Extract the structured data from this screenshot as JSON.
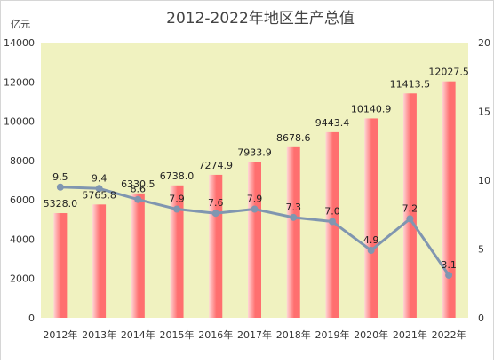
{
  "chart_data": {
    "type": "bar",
    "title": "2012-2022年地区生产总值",
    "ylabel": "亿元",
    "categories": [
      "2012年",
      "2013年",
      "2014年",
      "2015年",
      "2016年",
      "2017年",
      "2018年",
      "2019年",
      "2020年",
      "2021年",
      "2022年"
    ],
    "series": [
      {
        "type": "bar",
        "values": [
          5328.0,
          5765.8,
          6330.5,
          6738.0,
          7274.9,
          7933.9,
          8678.6,
          9443.4,
          10140.9,
          11413.5,
          12027.5
        ],
        "labels": [
          "5328.0",
          "5765.8",
          "6330.5",
          "6738.0",
          "7274.9",
          "7933.9",
          "8678.6",
          "9443.4",
          "10140.9",
          "11413.5",
          "12027.5"
        ]
      },
      {
        "type": "line",
        "axis": "right",
        "values": [
          9.5,
          9.4,
          8.6,
          7.9,
          7.6,
          7.9,
          7.3,
          7.0,
          4.9,
          7.2,
          3.1
        ],
        "labels": [
          "9.5",
          "9.4",
          "8.6",
          "7.9",
          "7.6",
          "7.9",
          "7.3",
          "7.0",
          "4.9",
          "7.2",
          "3.1"
        ]
      }
    ],
    "ylim": [
      0,
      14000
    ],
    "y_ticks": [
      "0",
      "2000",
      "4000",
      "6000",
      "8000",
      "10000",
      "12000",
      "14000"
    ],
    "y2lim": [
      0,
      20
    ],
    "y2_ticks": [
      "0",
      "5",
      "10",
      "15",
      "20"
    ],
    "grid": false,
    "legend": "none",
    "colors": {
      "plot_background": "#f0f2c0",
      "bar_light": "#ffd6d6",
      "bar_dark": "#ff6f6f",
      "line": "#8096b0"
    }
  }
}
